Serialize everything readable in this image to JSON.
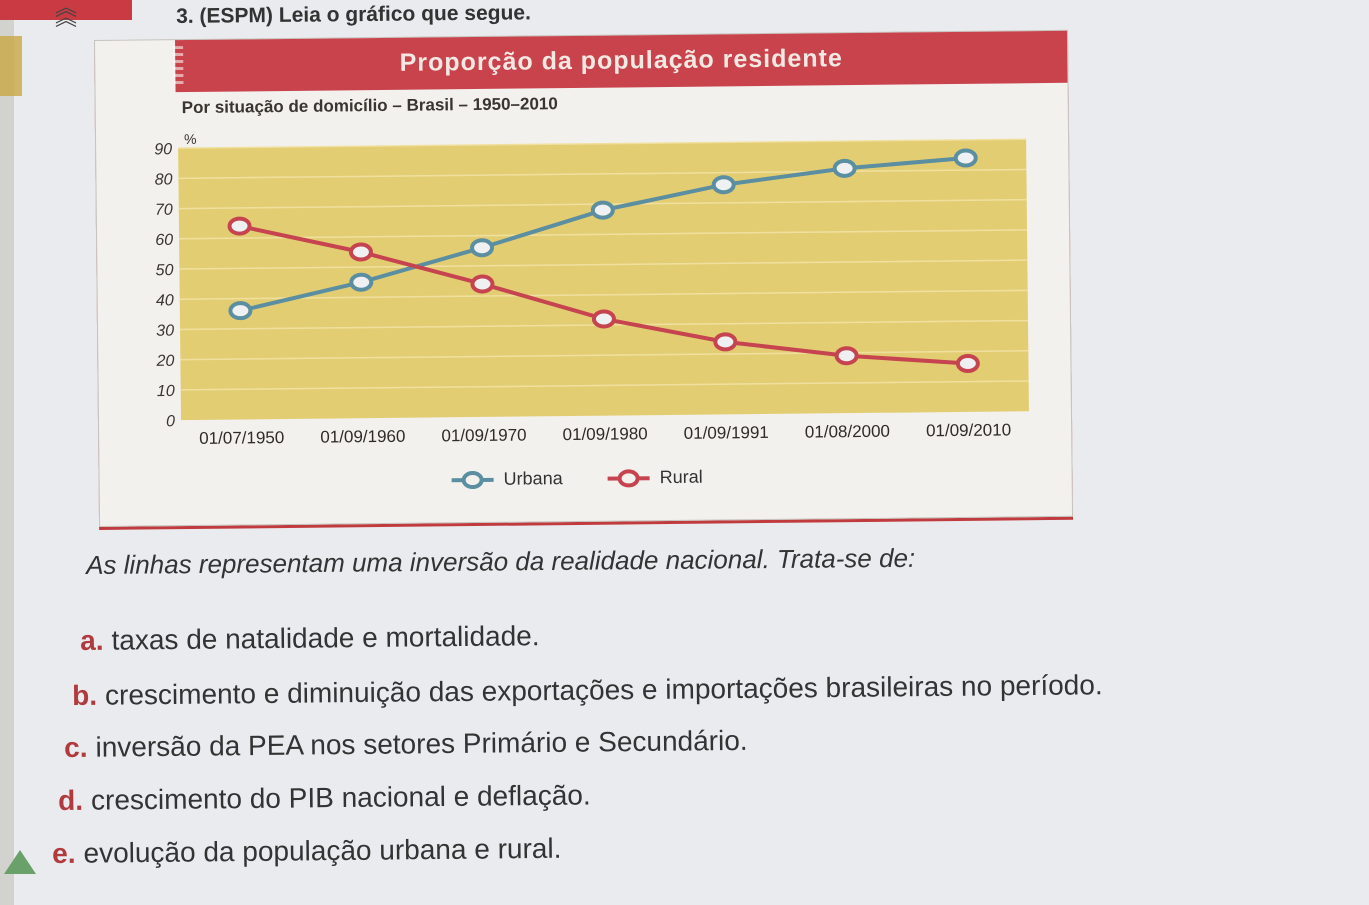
{
  "question": {
    "header": "3. (ESPM) Leia o gráfico que segue."
  },
  "card": {
    "title": "Proporção da população residente",
    "subtitle": "Por situação de domicílio – Brasil – 1950–2010"
  },
  "chart_data": {
    "type": "line",
    "title": "Proporção da população residente",
    "subtitle": "Por situação de domicílio – Brasil – 1950–2010",
    "ylabel": "%",
    "yticks": [
      "0",
      "10",
      "20",
      "30",
      "40",
      "50",
      "60",
      "70",
      "80",
      "90"
    ],
    "ylim": [
      0,
      90
    ],
    "categories": [
      "01/07/1950",
      "01/09/1960",
      "01/09/1970",
      "01/09/1980",
      "01/09/1991",
      "01/08/2000",
      "01/09/2010"
    ],
    "series": [
      {
        "name": "Urbana",
        "color": "#5a8ea0",
        "values": [
          36,
          45,
          56,
          68,
          76,
          81,
          84
        ]
      },
      {
        "name": "Rural",
        "color": "#c5444f",
        "values": [
          64,
          55,
          44,
          32,
          24,
          19,
          16
        ]
      }
    ],
    "grid": true,
    "legend": "bottom",
    "background": "#e3cd73"
  },
  "legend": {
    "urbana": "Urbana",
    "rural": "Rural"
  },
  "prompt": "As linhas representam uma inversão da realidade nacional. Trata-se de:",
  "options": [
    {
      "letter": "a.",
      "text": "taxas de natalidade e mortalidade."
    },
    {
      "letter": "b.",
      "text": "crescimento e diminuição das exportações e importações brasileiras no período."
    },
    {
      "letter": "c.",
      "text": "inversão da PEA nos setores Primário e Secundário."
    },
    {
      "letter": "d.",
      "text": "crescimento do PIB nacional e deflação."
    },
    {
      "letter": "e.",
      "text": "evolução da população urbana e rural."
    }
  ]
}
